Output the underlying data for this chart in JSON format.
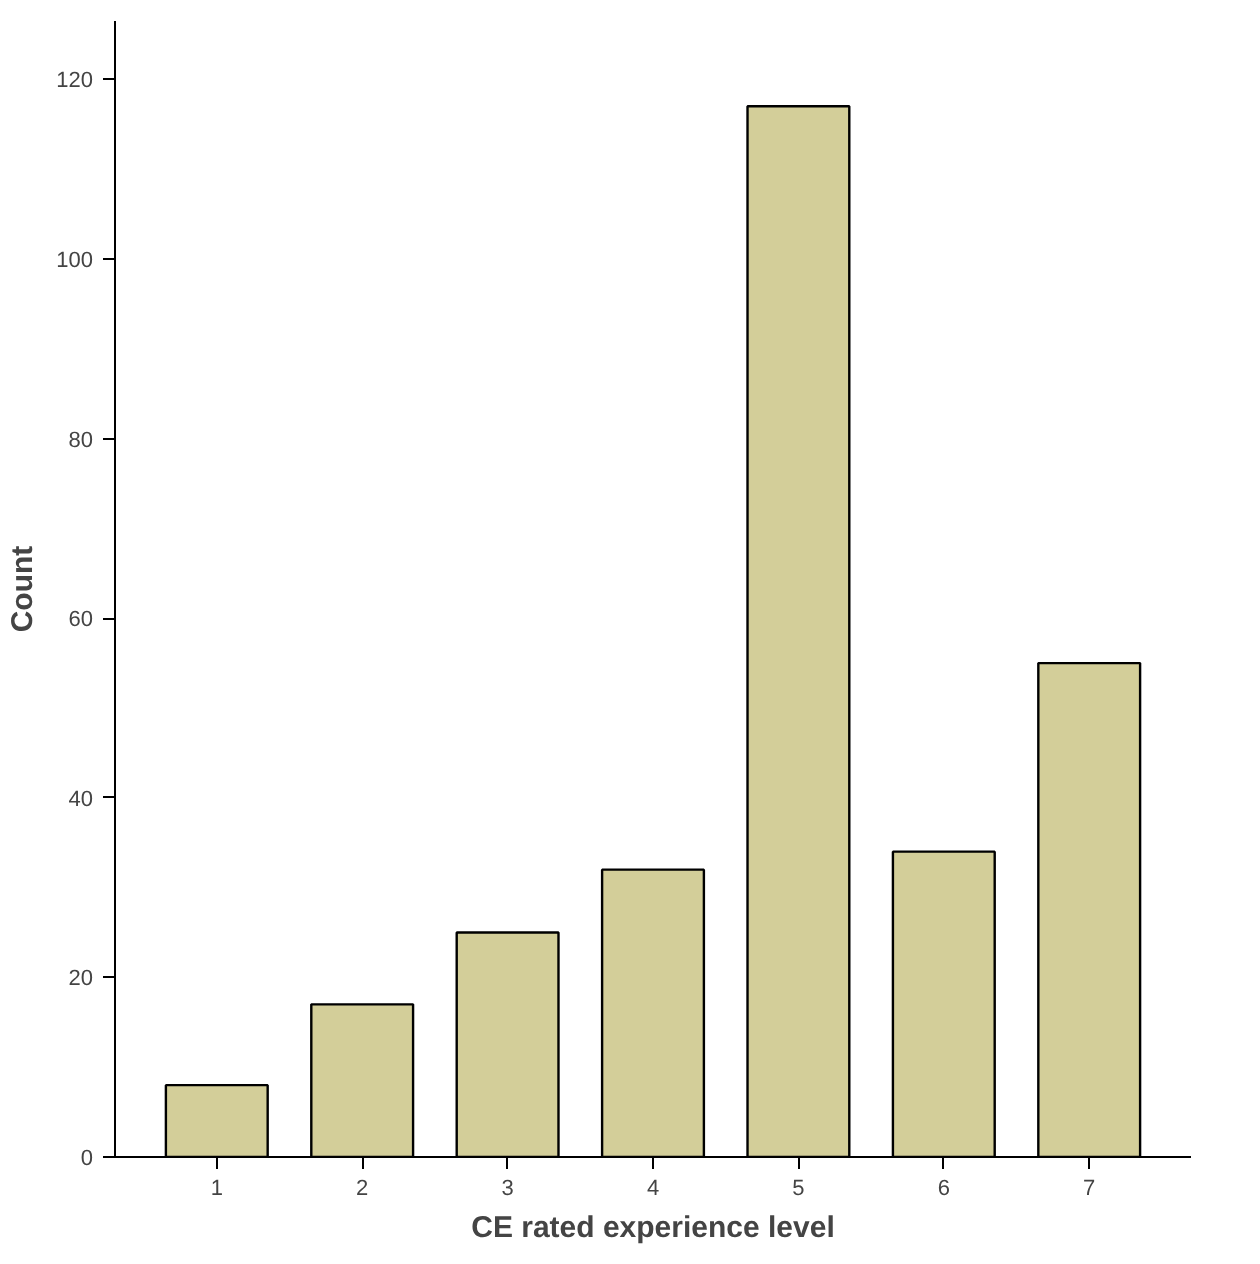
{
  "chart_data": {
    "type": "bar",
    "xlabel": "CE rated experience level",
    "ylabel": "Count",
    "categories": [
      "1",
      "2",
      "3",
      "4",
      "5",
      "6",
      "7"
    ],
    "values": [
      8,
      17,
      25,
      32,
      117,
      34,
      55
    ],
    "color": "#d3ce99",
    "ylim": [
      0,
      126.5
    ],
    "yticks": [
      0,
      20,
      40,
      60,
      80,
      100,
      120
    ],
    "grid": false
  }
}
